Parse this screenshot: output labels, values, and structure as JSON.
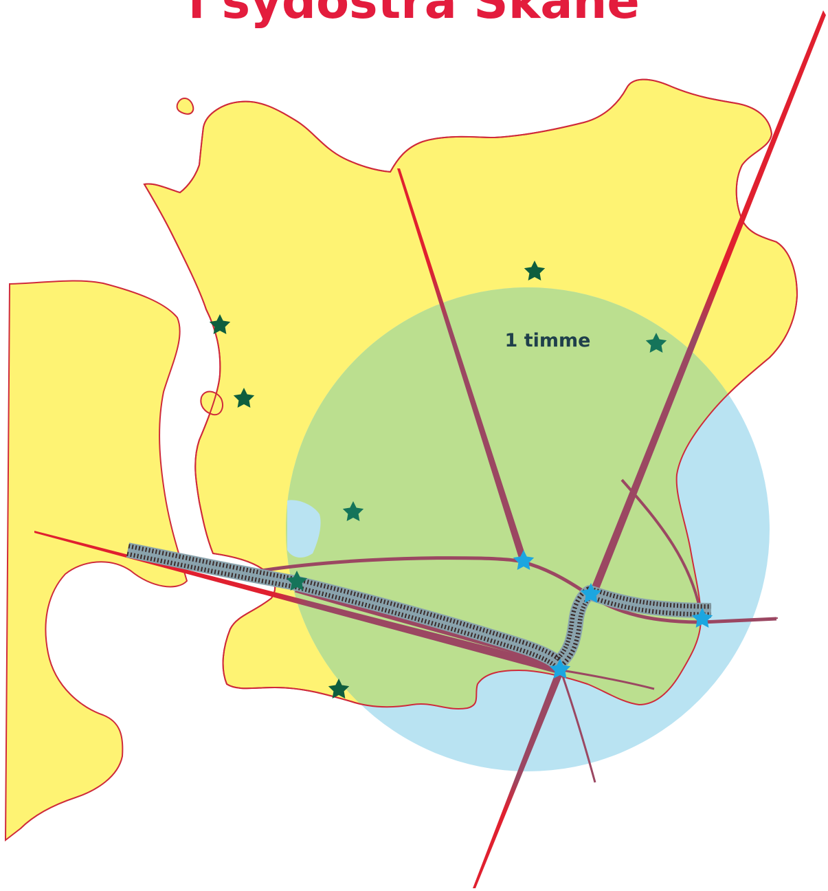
{
  "title": "i sydöstra Skåne",
  "circle_label": "1 timme",
  "colors": {
    "title": "#e31c3d",
    "land": "#fef373",
    "coast": "#cf2a3a",
    "sea_zone": "#b9e3f2",
    "land_zone": "#bbdf8f",
    "road": "#9b4762",
    "road_tip": "#e0202f",
    "station": "#1ca6e0",
    "town_star": "#0e5e3e",
    "rail": "#3a2b2a",
    "rail_halo": "#89a3ad",
    "label": "#1f3f4b"
  },
  "icons": {
    "town": "star-icon",
    "station": "station-star-icon",
    "rail": "railway-line"
  }
}
